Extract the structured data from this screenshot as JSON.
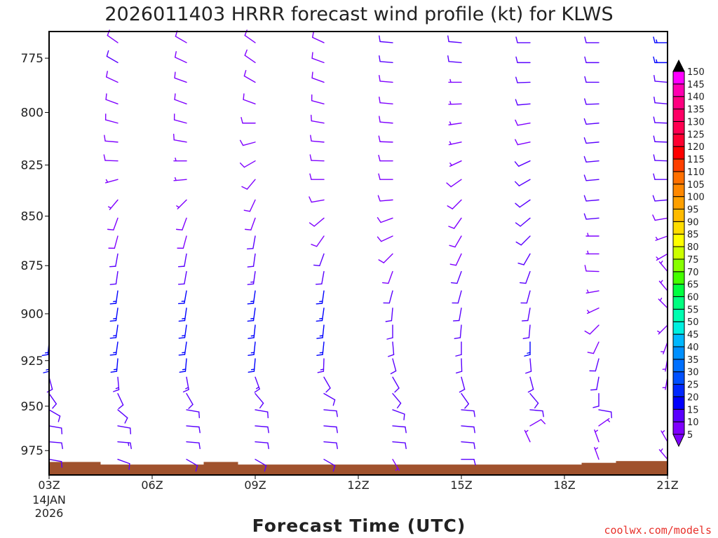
{
  "chart_data": {
    "type": "wind-barb-profile",
    "title": "2026011403 HRRR forecast wind profile (kt) for KLWS",
    "xlabel": "Forecast Time (UTC)",
    "ylabel": "",
    "credit": "coolwx.com/models",
    "x_tick_labels": [
      {
        "hour": 3,
        "label": "03Z"
      },
      {
        "hour": 6,
        "label": "06Z"
      },
      {
        "hour": 9,
        "label": "09Z"
      },
      {
        "hour": 12,
        "label": "12Z"
      },
      {
        "hour": 15,
        "label": "15Z"
      },
      {
        "hour": 18,
        "label": "18Z"
      },
      {
        "hour": 21,
        "label": "21Z"
      }
    ],
    "date_label": [
      "14JAN",
      "2026"
    ],
    "xlim_hours": [
      3,
      21
    ],
    "y_axis": "pressure (hPa), log scale, inverted",
    "ylim": [
      763,
      989
    ],
    "y_ticks": [
      775,
      800,
      825,
      850,
      875,
      900,
      925,
      950,
      975
    ],
    "levels_hpa": [
      768,
      777,
      786,
      796,
      805,
      814,
      823,
      832,
      842,
      851,
      860,
      869,
      878,
      888,
      897,
      906,
      915,
      924,
      934,
      943,
      952,
      961,
      970,
      980
    ],
    "columns": [
      {
        "hour": 3,
        "dir": [
          null,
          null,
          null,
          null,
          null,
          null,
          null,
          null,
          null,
          null,
          null,
          null,
          null,
          null,
          null,
          null,
          185,
          180,
          165,
          145,
          120,
          100,
          95,
          100
        ],
        "spd": [
          null,
          null,
          null,
          null,
          null,
          null,
          null,
          null,
          null,
          null,
          null,
          null,
          null,
          null,
          null,
          null,
          16,
          15,
          12,
          10,
          10,
          12,
          12,
          12
        ]
      },
      {
        "hour": 5,
        "dir": [
          305,
          300,
          295,
          290,
          285,
          275,
          272,
          255,
          220,
          200,
          195,
          190,
          188,
          188,
          188,
          188,
          188,
          185,
          175,
          155,
          130,
          100,
          95,
          110
        ],
        "spd": [
          8,
          10,
          8,
          8,
          8,
          8,
          8,
          7,
          7,
          8,
          8,
          10,
          12,
          15,
          16,
          16,
          17,
          16,
          14,
          12,
          12,
          12,
          13,
          12
        ]
      },
      {
        "hour": 7,
        "dir": [
          300,
          295,
          290,
          290,
          285,
          280,
          270,
          265,
          225,
          200,
          195,
          190,
          190,
          190,
          188,
          188,
          188,
          185,
          170,
          150,
          100,
          95,
          95,
          120
        ],
        "spd": [
          8,
          8,
          8,
          8,
          8,
          8,
          7,
          7,
          7,
          8,
          9,
          10,
          12,
          15,
          16,
          16,
          16,
          15,
          13,
          12,
          12,
          12,
          12,
          12
        ]
      },
      {
        "hour": 9,
        "dir": [
          305,
          305,
          300,
          290,
          270,
          255,
          240,
          220,
          205,
          200,
          190,
          188,
          188,
          188,
          188,
          186,
          186,
          185,
          160,
          140,
          100,
          95,
          95,
          120
        ],
        "spd": [
          8,
          8,
          8,
          8,
          8,
          8,
          8,
          8,
          8,
          8,
          10,
          11,
          13,
          16,
          16,
          17,
          17,
          15,
          13,
          12,
          12,
          12,
          12,
          12
        ]
      },
      {
        "hour": 11,
        "dir": [
          295,
          290,
          290,
          285,
          280,
          275,
          272,
          270,
          260,
          230,
          215,
          200,
          190,
          188,
          188,
          186,
          186,
          182,
          150,
          120,
          95,
          95,
          95,
          120
        ],
        "spd": [
          8,
          8,
          8,
          8,
          8,
          8,
          8,
          8,
          8,
          8,
          8,
          10,
          12,
          15,
          16,
          16,
          16,
          14,
          12,
          12,
          12,
          12,
          12,
          12
        ]
      },
      {
        "hour": 13,
        "dir": [
          275,
          275,
          275,
          275,
          275,
          272,
          270,
          270,
          265,
          250,
          245,
          225,
          200,
          195,
          185,
          180,
          175,
          165,
          150,
          140,
          110,
          95,
          95,
          150
        ],
        "spd": [
          10,
          10,
          8,
          8,
          8,
          8,
          8,
          8,
          8,
          8,
          8,
          8,
          9,
          10,
          12,
          12,
          12,
          12,
          12,
          12,
          12,
          12,
          12,
          4
        ]
      },
      {
        "hour": 15,
        "dir": [
          275,
          275,
          270,
          268,
          262,
          258,
          245,
          235,
          225,
          215,
          210,
          205,
          200,
          195,
          190,
          185,
          180,
          178,
          165,
          145,
          95,
          95,
          95,
          90
        ],
        "spd": [
          10,
          10,
          7,
          7,
          7,
          7,
          7,
          8,
          8,
          8,
          8,
          8,
          10,
          10,
          10,
          12,
          12,
          12,
          12,
          12,
          12,
          12,
          12,
          10
        ]
      },
      {
        "hour": 17,
        "dir": [
          270,
          270,
          268,
          265,
          260,
          258,
          245,
          240,
          235,
          230,
          225,
          210,
          200,
          195,
          190,
          185,
          180,
          175,
          165,
          140,
          95,
          60,
          335,
          null
        ],
        "spd": [
          10,
          10,
          10,
          10,
          8,
          8,
          10,
          10,
          10,
          10,
          10,
          10,
          10,
          10,
          12,
          12,
          15,
          12,
          12,
          12,
          12,
          8,
          3,
          null
        ]
      },
      {
        "hour": 19,
        "dir": [
          270,
          270,
          270,
          268,
          265,
          265,
          265,
          265,
          265,
          265,
          270,
          270,
          272,
          260,
          245,
          225,
          205,
          195,
          190,
          180,
          100,
          55,
          340,
          340
        ],
        "spd": [
          12,
          10,
          10,
          10,
          10,
          10,
          10,
          10,
          10,
          10,
          6,
          6,
          8,
          7,
          7,
          8,
          8,
          10,
          10,
          10,
          12,
          4,
          3,
          3
        ]
      },
      {
        "hour": 21,
        "dir": [
          270,
          270,
          275,
          275,
          272,
          272,
          272,
          270,
          265,
          260,
          250,
          240,
          320,
          320,
          315,
          225,
          200,
          190,
          190,
          null,
          null,
          null,
          330,
          320
        ],
        "spd": [
          15,
          15,
          10,
          10,
          10,
          10,
          10,
          10,
          10,
          8,
          7,
          7,
          4,
          7,
          4,
          4,
          6,
          6,
          6,
          null,
          null,
          null,
          3,
          3
        ]
      }
    ],
    "surface": [
      {
        "from_hour": 3,
        "to_hour": 4.5,
        "p": 981.5
      },
      {
        "from_hour": 4.5,
        "to_hour": 7.5,
        "p": 983
      },
      {
        "from_hour": 7.5,
        "to_hour": 8.5,
        "p": 981.5
      },
      {
        "from_hour": 8.5,
        "to_hour": 18.5,
        "p": 983
      },
      {
        "from_hour": 18.5,
        "to_hour": 19.5,
        "p": 982
      },
      {
        "from_hour": 19.5,
        "to_hour": 21,
        "p": 981
      }
    ],
    "legend": {
      "placement": "right",
      "labels": [
        "5",
        "10",
        "15",
        "20",
        "25",
        "30",
        "35",
        "40",
        "45",
        "50",
        "55",
        "60",
        "65",
        "70",
        "75",
        "80",
        "85",
        "90",
        "95",
        "100",
        "105",
        "110",
        "115",
        "120",
        "125",
        "130",
        "135",
        "140",
        "145",
        "150"
      ],
      "bin_colors": [
        "#7f00ff",
        "#5a00ff",
        "#0000ff",
        "#0028ff",
        "#0050ff",
        "#0070ff",
        "#0090ff",
        "#00b8ff",
        "#00f0e0",
        "#00ffb0",
        "#00ff80",
        "#00ff40",
        "#44ff00",
        "#88ff00",
        "#ccff00",
        "#ffff00",
        "#ffdd00",
        "#ffbb00",
        "#ffa000",
        "#ff8800",
        "#ff7000",
        "#ff4000",
        "#ff0000",
        "#ff0030",
        "#ff0050",
        "#ff0066",
        "#ff0080",
        "#ff00b0",
        "#ff00ff"
      ],
      "under_color": "#8000ff",
      "over_color": "#000000"
    },
    "colors": {
      "ground": "#a0522d",
      "axis": "#000000",
      "credit": "#e8302a"
    }
  }
}
